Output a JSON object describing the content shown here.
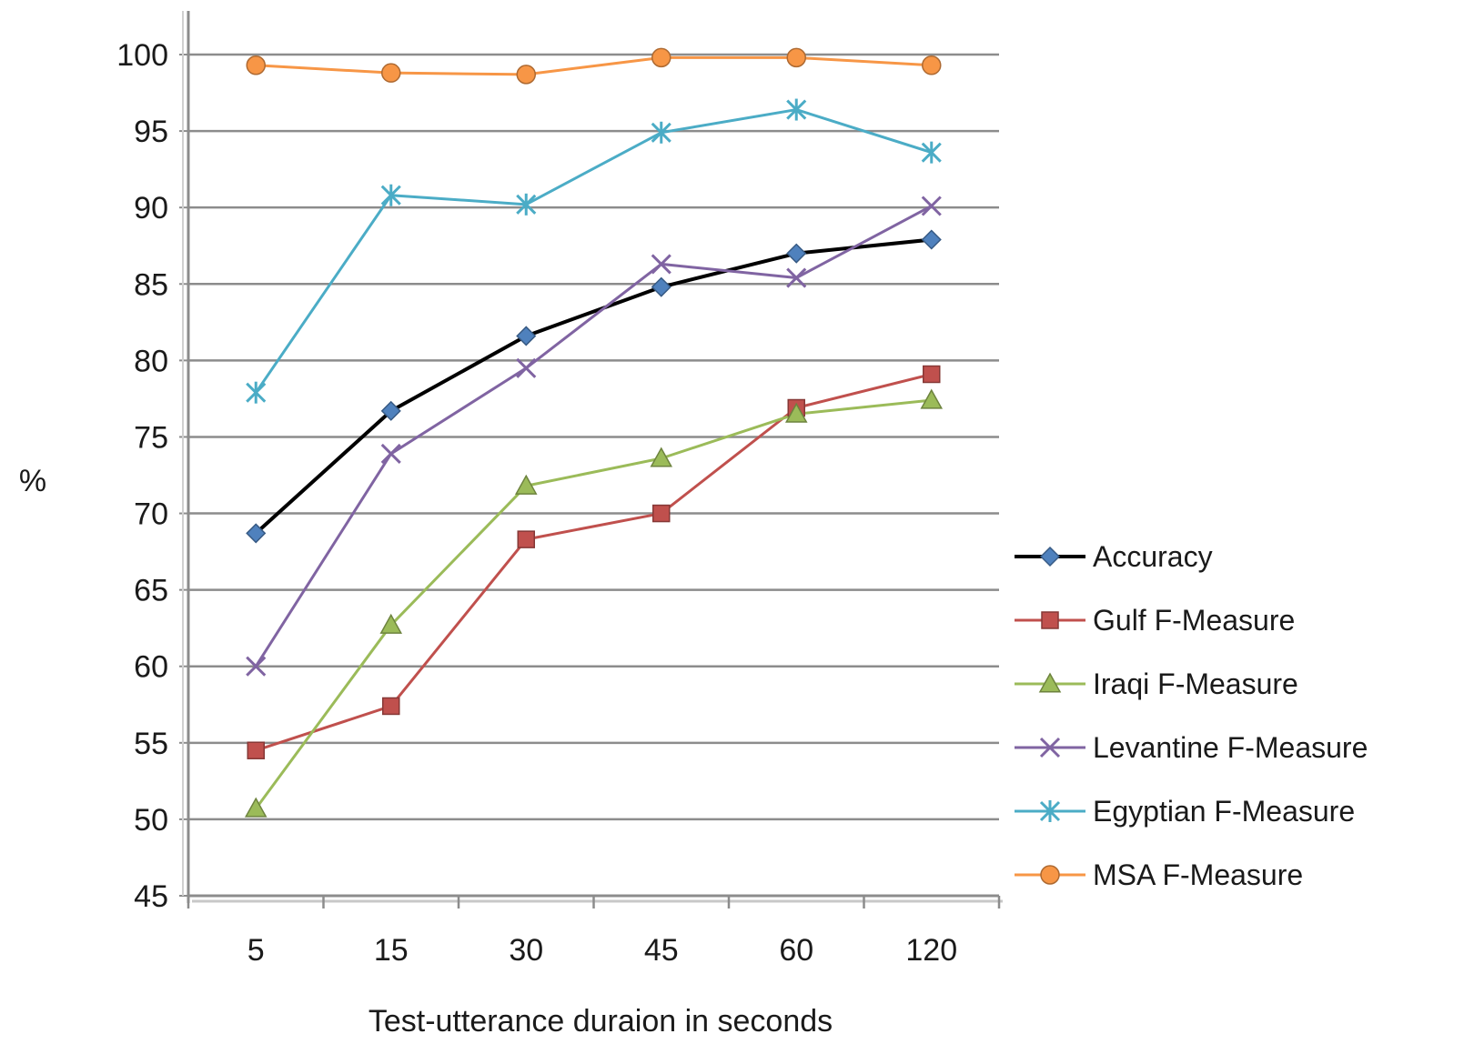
{
  "chart_data": {
    "type": "line",
    "categories": [
      "5",
      "15",
      "30",
      "45",
      "60",
      "120"
    ],
    "xlabel": "Test-utterance duraion in seconds",
    "ylabel": "%",
    "ylim": [
      45,
      100
    ],
    "yticks": [
      "45",
      "50",
      "55",
      "60",
      "65",
      "70",
      "75",
      "80",
      "85",
      "90",
      "95",
      "100"
    ],
    "grid": true,
    "legend_position": "right",
    "series": [
      {
        "name": "Accuracy",
        "color": "#000000",
        "marker": "diamond",
        "marker_color": "#4f81bd",
        "values": [
          68.7,
          76.7,
          81.6,
          84.8,
          87.0,
          87.9
        ]
      },
      {
        "name": "Gulf F-Measure",
        "color": "#c0504d",
        "marker": "square",
        "marker_color": "#c0504d",
        "values": [
          54.5,
          57.4,
          68.3,
          70.0,
          76.9,
          79.1
        ]
      },
      {
        "name": "Iraqi F-Measure",
        "color": "#9bbb59",
        "marker": "triangle",
        "marker_color": "#9bbb59",
        "values": [
          50.7,
          62.7,
          71.8,
          73.6,
          76.5,
          77.4
        ]
      },
      {
        "name": "Levantine F-Measure",
        "color": "#8064a2",
        "marker": "x",
        "marker_color": "#8064a2",
        "values": [
          60.0,
          73.9,
          79.5,
          86.3,
          85.4,
          90.1
        ]
      },
      {
        "name": "Egyptian F-Measure",
        "color": "#4bacc6",
        "marker": "star",
        "marker_color": "#4bacc6",
        "values": [
          77.9,
          90.8,
          90.2,
          94.9,
          96.4,
          93.6
        ]
      },
      {
        "name": "MSA F-Measure",
        "color": "#f79646",
        "marker": "circle",
        "marker_color": "#f79646",
        "values": [
          99.3,
          98.8,
          98.7,
          99.8,
          99.8,
          99.3
        ]
      }
    ]
  }
}
